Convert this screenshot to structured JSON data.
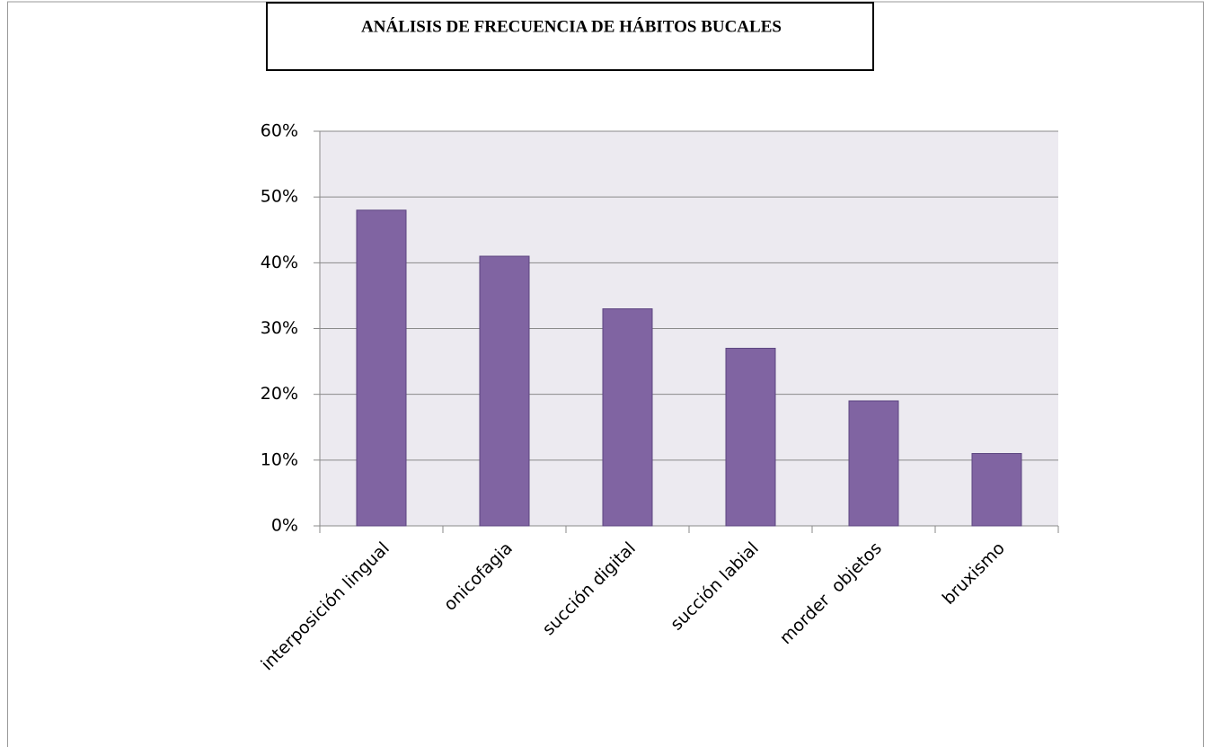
{
  "chart_data": {
    "type": "bar",
    "title": "ANÁLISIS DE FRECUENCIA DE HÁBITOS BUCALES",
    "categories": [
      "interposición lingual",
      "onicofagia",
      "succión digital",
      "succión labial",
      "morder  objetos",
      "bruxismo"
    ],
    "values": [
      48,
      41,
      33,
      27,
      19,
      11
    ],
    "color": "#8064a2",
    "ylim": [
      0,
      60
    ],
    "yticks": [
      {
        "value": 0,
        "label": "0%"
      },
      {
        "value": 10,
        "label": "10%"
      },
      {
        "value": 20,
        "label": "20%"
      },
      {
        "value": 30,
        "label": "30%"
      },
      {
        "value": 40,
        "label": "40%"
      },
      {
        "value": 50,
        "label": "50%"
      },
      {
        "value": 60,
        "label": "60%"
      }
    ],
    "grid": true
  }
}
